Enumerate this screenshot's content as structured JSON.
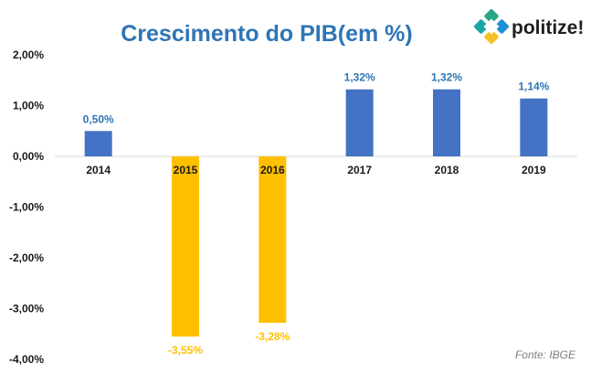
{
  "brand": {
    "name": "politize!",
    "colors": {
      "green": "#2aa786",
      "blue": "#1d8fd6",
      "yellow": "#f5c223",
      "teal": "#1aa6a6"
    }
  },
  "source": "Fonte: IBGE",
  "chart_data": {
    "type": "bar",
    "title": "Crescimento do PIB(em %)",
    "title_color": "#2e75b6",
    "xlabel": "",
    "ylabel": "",
    "categories": [
      "2014",
      "2015",
      "2016",
      "2017",
      "2018",
      "2019"
    ],
    "values": [
      0.5,
      -3.55,
      -3.28,
      1.32,
      1.32,
      1.14
    ],
    "data_labels": [
      "0,50%",
      "-3,55%",
      "-3,28%",
      "1,32%",
      "1,32%",
      "1,14%"
    ],
    "ylim": [
      -4.0,
      2.0
    ],
    "yticks": [
      2.0,
      1.0,
      0.0,
      -1.0,
      -2.0,
      -3.0,
      -4.0
    ],
    "ytick_labels": [
      "2,00%",
      "1,00%",
      "0,00%",
      "-1,00%",
      "-2,00%",
      "-3,00%",
      "-4,00%"
    ],
    "grid": false,
    "legend": "none",
    "colors": {
      "positive_bar": "#4472c4",
      "negative_bar": "#ffc000",
      "positive_label": "#2e75b6",
      "negative_label": "#ffc000",
      "axis": "#d9d9d9"
    }
  }
}
